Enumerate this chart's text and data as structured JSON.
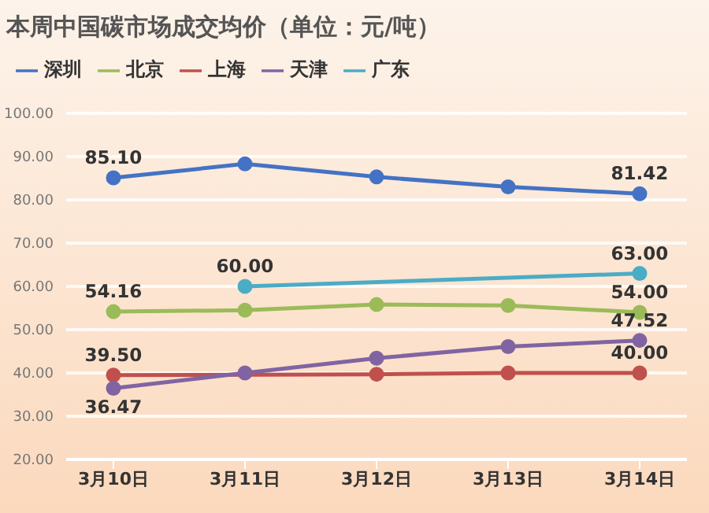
{
  "chart_data": {
    "type": "line",
    "title": "本周中国碳市场成交均价（单位：元/吨）",
    "categories": [
      "3月10日",
      "3月11日",
      "3月12日",
      "3月13日",
      "3月14日"
    ],
    "series": [
      {
        "name": "深圳",
        "color": "#4472c4",
        "values": [
          85.1,
          88.3,
          85.3,
          83.0,
          81.42
        ],
        "value_labels": [
          "85.10",
          null,
          null,
          null,
          "81.42"
        ]
      },
      {
        "name": "北京",
        "color": "#9bbb59",
        "values": [
          54.16,
          54.5,
          55.8,
          55.6,
          54.0
        ],
        "value_labels": [
          "54.16",
          null,
          null,
          null,
          "54.00"
        ]
      },
      {
        "name": "上海",
        "color": "#c0504d",
        "values": [
          39.5,
          null,
          39.7,
          40.0,
          40.0
        ],
        "value_labels": [
          "39.50",
          null,
          null,
          null,
          "40.00"
        ]
      },
      {
        "name": "天津",
        "color": "#8064a2",
        "values": [
          36.47,
          40.0,
          43.4,
          46.1,
          47.52
        ],
        "value_labels": [
          "36.47",
          null,
          null,
          null,
          "47.52"
        ]
      },
      {
        "name": "广东",
        "color": "#4bacc6",
        "values": [
          null,
          60.0,
          null,
          null,
          63.0
        ],
        "value_labels": [
          null,
          "60.00",
          null,
          null,
          "63.00"
        ]
      }
    ],
    "ylim": [
      20,
      100
    ],
    "yticks": [
      {
        "value": 20,
        "label": "20.00"
      },
      {
        "value": 30,
        "label": "30.00"
      },
      {
        "value": 40,
        "label": "40.00"
      },
      {
        "value": 50,
        "label": "50.00"
      },
      {
        "value": 60,
        "label": "60.00"
      },
      {
        "value": 70,
        "label": "70.00"
      },
      {
        "value": 80,
        "label": "80.00"
      },
      {
        "value": 90,
        "label": "90.00"
      },
      {
        "value": 100,
        "label": "100.00"
      }
    ],
    "grid": "y",
    "legend": "top left",
    "marker": "circle",
    "line_style": "solid"
  }
}
